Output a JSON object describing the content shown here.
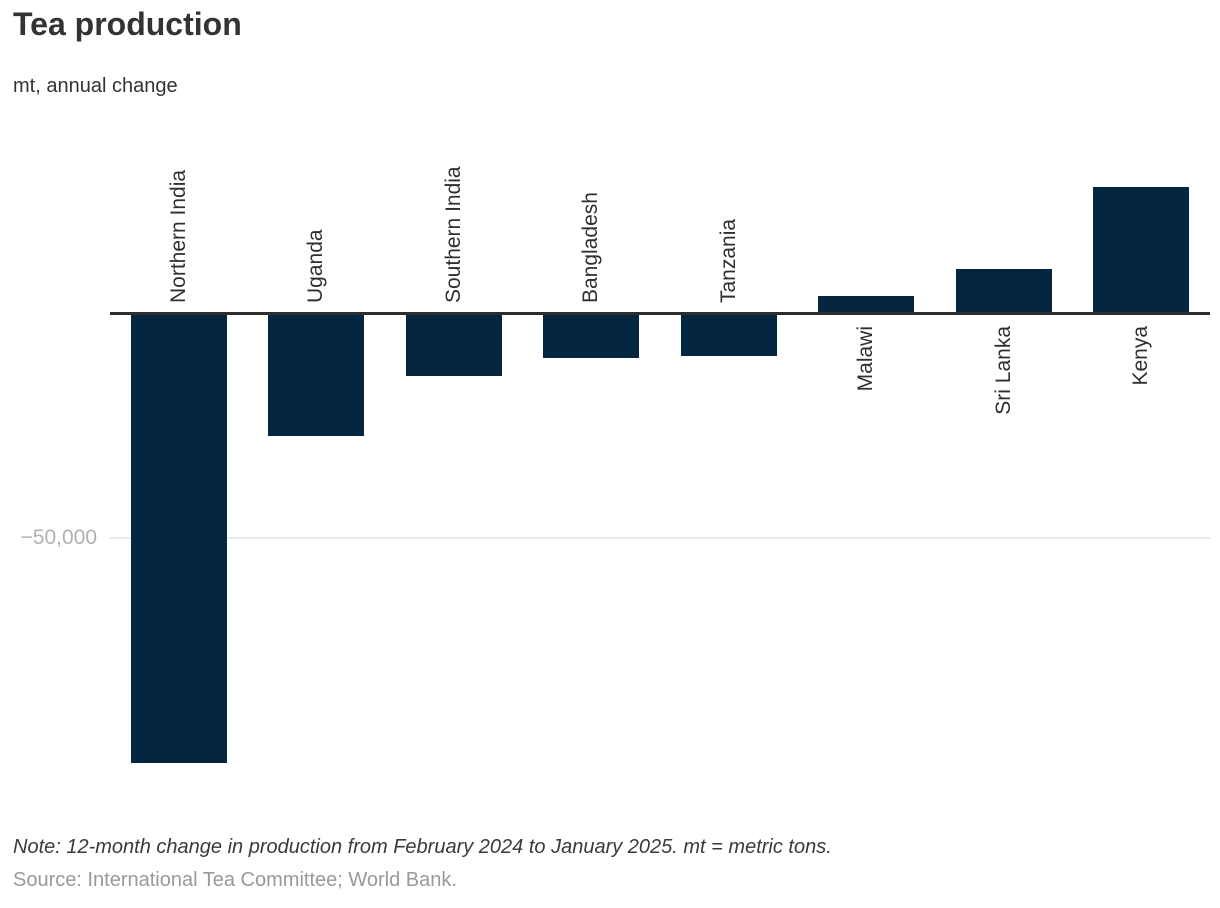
{
  "title": "Tea production",
  "subtitle": "mt, annual change",
  "note": "Note: 12-month change in production from February 2024 to January 2025. mt = metric tons.",
  "source": "Source: International Tea Committee; World Bank.",
  "colors": {
    "bar": "#042640",
    "axis": "#2d2d2d",
    "gridline": "#e9e9e9",
    "tick_label": "#b1b1b1",
    "label": "#2f2f2f",
    "title": "#333333",
    "subtitle": "#333333",
    "note": "#3a3a3a",
    "source": "#999999"
  },
  "chart_data": {
    "type": "bar",
    "title": "Tea production",
    "ylabel": "mt, annual change",
    "xlabel": "",
    "categories": [
      "Northern India",
      "Uganda",
      "Southern India",
      "Bangladesh",
      "Tanzania",
      "Malawi",
      "Sri Lanka",
      "Kenya"
    ],
    "values": [
      -100000,
      -27000,
      -13600,
      -9600,
      -9200,
      3600,
      9600,
      28000
    ],
    "ylim": [
      -105000,
      31000
    ],
    "yticks": [
      {
        "value": -50000,
        "label": "−50,000"
      }
    ],
    "grid": "single horizontal gridline at -50,000",
    "legend": "none",
    "orientation": "vertical",
    "category_label_rotation": -90,
    "category_label_position": "opposite side of bar relative to zero line"
  }
}
